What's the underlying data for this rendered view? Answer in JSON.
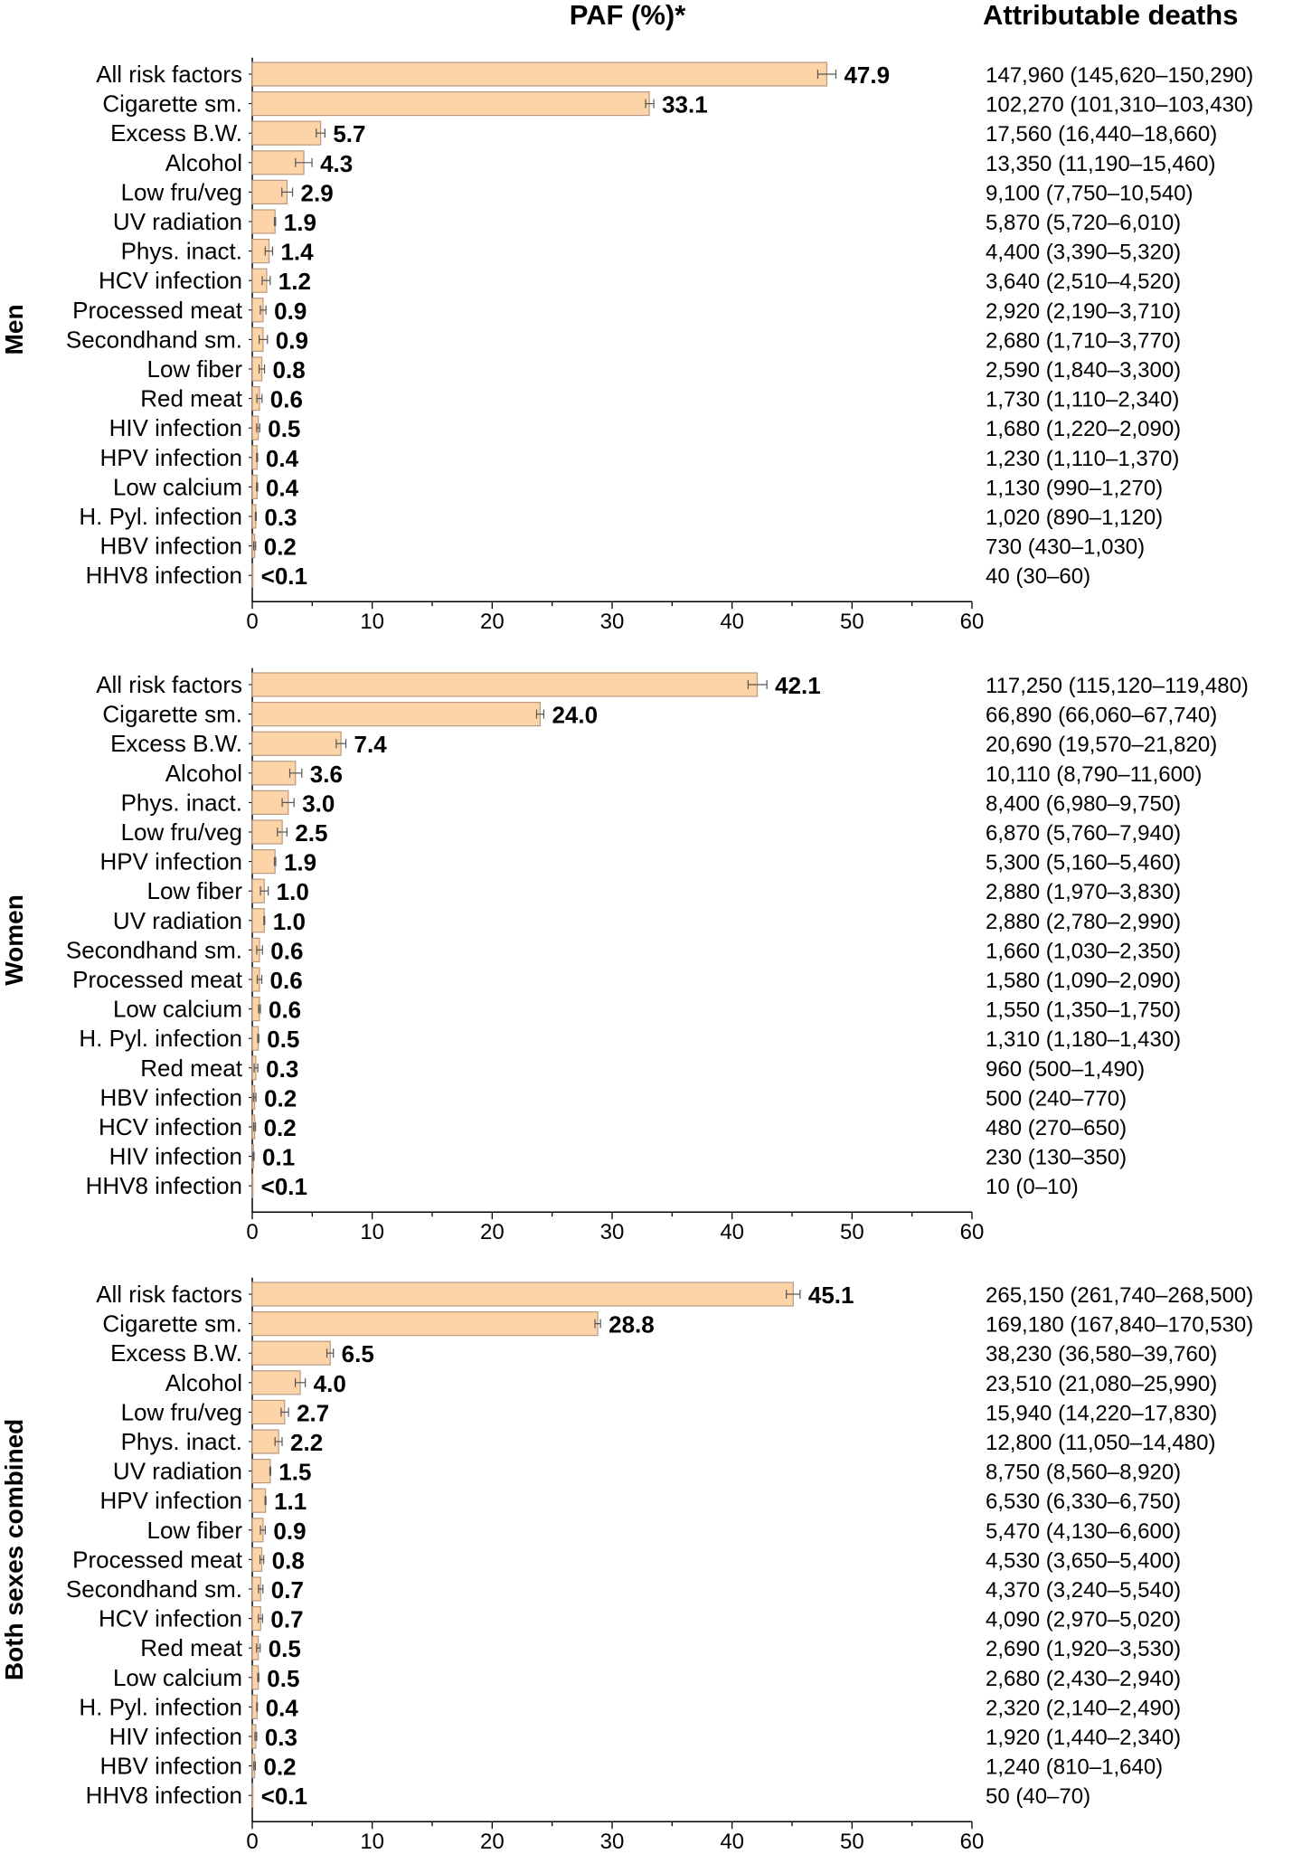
{
  "chart_data": {
    "type": "bar",
    "orientation": "horizontal",
    "title": "PAF (%)*",
    "right_column_title": "Attributable deaths",
    "xlim": [
      0,
      60
    ],
    "xticks": [
      0,
      10,
      20,
      30,
      40,
      50,
      60
    ],
    "grid": false,
    "error_bars": true,
    "bar_color": "#fdd3a8",
    "bar_edge_color": "#b89a80",
    "panels": [
      {
        "name": "Men",
        "rows": [
          {
            "label": "All risk factors",
            "paf": 47.9,
            "paf_label": "47.9",
            "deaths": "147,960 (145,620–150,290)"
          },
          {
            "label": "Cigarette sm.",
            "paf": 33.1,
            "paf_label": "33.1",
            "deaths": "102,270 (101,310–103,430)"
          },
          {
            "label": "Excess B.W.",
            "paf": 5.7,
            "paf_label": "5.7",
            "deaths": "17,560 (16,440–18,660)"
          },
          {
            "label": "Alcohol",
            "paf": 4.3,
            "paf_label": "4.3",
            "deaths": "13,350 (11,190–15,460)"
          },
          {
            "label": "Low fru/veg",
            "paf": 2.9,
            "paf_label": "2.9",
            "deaths": "9,100 (7,750–10,540)"
          },
          {
            "label": "UV radiation",
            "paf": 1.9,
            "paf_label": "1.9",
            "deaths": "5,870 (5,720–6,010)"
          },
          {
            "label": "Phys. inact.",
            "paf": 1.4,
            "paf_label": "1.4",
            "deaths": "4,400 (3,390–5,320)"
          },
          {
            "label": "HCV infection",
            "paf": 1.2,
            "paf_label": "1.2",
            "deaths": "3,640 (2,510–4,520)"
          },
          {
            "label": "Processed meat",
            "paf": 0.9,
            "paf_label": "0.9",
            "deaths": "2,920 (2,190–3,710)"
          },
          {
            "label": "Secondhand sm.",
            "paf": 0.9,
            "paf_label": "0.9",
            "deaths": "2,680 (1,710–3,770)"
          },
          {
            "label": "Low fiber",
            "paf": 0.8,
            "paf_label": "0.8",
            "deaths": "2,590 (1,840–3,300)"
          },
          {
            "label": "Red meat",
            "paf": 0.6,
            "paf_label": "0.6",
            "deaths": "1,730 (1,110–2,340)"
          },
          {
            "label": "HIV infection",
            "paf": 0.5,
            "paf_label": "0.5",
            "deaths": "1,680 (1,220–2,090)"
          },
          {
            "label": "HPV infection",
            "paf": 0.4,
            "paf_label": "0.4",
            "deaths": "1,230 (1,110–1,370)"
          },
          {
            "label": "Low calcium",
            "paf": 0.4,
            "paf_label": "0.4",
            "deaths": "1,130 (990–1,270)"
          },
          {
            "label": "H. Pyl. infection",
            "paf": 0.3,
            "paf_label": "0.3",
            "deaths": "1,020 (890–1,120)"
          },
          {
            "label": "HBV infection",
            "paf": 0.2,
            "paf_label": "0.2",
            "deaths": "730 (430–1,030)"
          },
          {
            "label": "HHV8 infection",
            "paf": 0.05,
            "paf_label": "<0.1",
            "deaths": "40 (30–60)"
          }
        ]
      },
      {
        "name": "Women",
        "rows": [
          {
            "label": "All risk factors",
            "paf": 42.1,
            "paf_label": "42.1",
            "deaths": "117,250 (115,120–119,480)"
          },
          {
            "label": "Cigarette sm.",
            "paf": 24.0,
            "paf_label": "24.0",
            "deaths": "66,890 (66,060–67,740)"
          },
          {
            "label": "Excess B.W.",
            "paf": 7.4,
            "paf_label": "7.4",
            "deaths": "20,690 (19,570–21,820)"
          },
          {
            "label": "Alcohol",
            "paf": 3.6,
            "paf_label": "3.6",
            "deaths": "10,110 (8,790–11,600)"
          },
          {
            "label": "Phys. inact.",
            "paf": 3.0,
            "paf_label": "3.0",
            "deaths": "8,400 (6,980–9,750)"
          },
          {
            "label": "Low fru/veg",
            "paf": 2.5,
            "paf_label": "2.5",
            "deaths": "6,870 (5,760–7,940)"
          },
          {
            "label": "HPV infection",
            "paf": 1.9,
            "paf_label": "1.9",
            "deaths": "5,300 (5,160–5,460)"
          },
          {
            "label": "Low fiber",
            "paf": 1.0,
            "paf_label": "1.0",
            "deaths": "2,880 (1,970–3,830)"
          },
          {
            "label": "UV radiation",
            "paf": 1.0,
            "paf_label": "1.0",
            "deaths": "2,880 (2,780–2,990)"
          },
          {
            "label": "Secondhand sm.",
            "paf": 0.6,
            "paf_label": "0.6",
            "deaths": "1,660 (1,030–2,350)"
          },
          {
            "label": "Processed meat",
            "paf": 0.6,
            "paf_label": "0.6",
            "deaths": "1,580 (1,090–2,090)"
          },
          {
            "label": "Low calcium",
            "paf": 0.6,
            "paf_label": "0.6",
            "deaths": "1,550 (1,350–1,750)"
          },
          {
            "label": "H. Pyl. infection",
            "paf": 0.5,
            "paf_label": "0.5",
            "deaths": "1,310 (1,180–1,430)"
          },
          {
            "label": "Red meat",
            "paf": 0.3,
            "paf_label": "0.3",
            "deaths": "960 (500–1,490)"
          },
          {
            "label": "HBV infection",
            "paf": 0.2,
            "paf_label": "0.2",
            "deaths": "500 (240–770)"
          },
          {
            "label": "HCV infection",
            "paf": 0.2,
            "paf_label": "0.2",
            "deaths": "480 (270–650)"
          },
          {
            "label": "HIV infection",
            "paf": 0.1,
            "paf_label": "0.1",
            "deaths": "230 (130–350)"
          },
          {
            "label": "HHV8 infection",
            "paf": 0.05,
            "paf_label": "<0.1",
            "deaths": "10 (0–10)"
          }
        ]
      },
      {
        "name": "Both sexes combined",
        "rows": [
          {
            "label": "All risk factors",
            "paf": 45.1,
            "paf_label": "45.1",
            "deaths": "265,150 (261,740–268,500)"
          },
          {
            "label": "Cigarette sm.",
            "paf": 28.8,
            "paf_label": "28.8",
            "deaths": "169,180 (167,840–170,530)"
          },
          {
            "label": "Excess B.W.",
            "paf": 6.5,
            "paf_label": "6.5",
            "deaths": "38,230 (36,580–39,760)"
          },
          {
            "label": "Alcohol",
            "paf": 4.0,
            "paf_label": "4.0",
            "deaths": "23,510 (21,080–25,990)"
          },
          {
            "label": "Low fru/veg",
            "paf": 2.7,
            "paf_label": "2.7",
            "deaths": "15,940 (14,220–17,830)"
          },
          {
            "label": "Phys. inact.",
            "paf": 2.2,
            "paf_label": "2.2",
            "deaths": "12,800 (11,050–14,480)"
          },
          {
            "label": "UV radiation",
            "paf": 1.5,
            "paf_label": "1.5",
            "deaths": "8,750 (8,560–8,920)"
          },
          {
            "label": "HPV infection",
            "paf": 1.1,
            "paf_label": "1.1",
            "deaths": "6,530 (6,330–6,750)"
          },
          {
            "label": "Low fiber",
            "paf": 0.9,
            "paf_label": "0.9",
            "deaths": "5,470 (4,130–6,600)"
          },
          {
            "label": "Processed meat",
            "paf": 0.8,
            "paf_label": "0.8",
            "deaths": "4,530 (3,650–5,400)"
          },
          {
            "label": "Secondhand sm.",
            "paf": 0.7,
            "paf_label": "0.7",
            "deaths": "4,370 (3,240–5,540)"
          },
          {
            "label": "HCV infection",
            "paf": 0.7,
            "paf_label": "0.7",
            "deaths": "4,090 (2,970–5,020)"
          },
          {
            "label": "Red meat",
            "paf": 0.5,
            "paf_label": "0.5",
            "deaths": "2,690 (1,920–3,530)"
          },
          {
            "label": "Low calcium",
            "paf": 0.5,
            "paf_label": "0.5",
            "deaths": "2,680 (2,430–2,940)"
          },
          {
            "label": "H. Pyl. infection",
            "paf": 0.4,
            "paf_label": "0.4",
            "deaths": "2,320 (2,140–2,490)"
          },
          {
            "label": "HIV infection",
            "paf": 0.3,
            "paf_label": "0.3",
            "deaths": "1,920 (1,440–2,340)"
          },
          {
            "label": "HBV infection",
            "paf": 0.2,
            "paf_label": "0.2",
            "deaths": "1,240 (810–1,640)"
          },
          {
            "label": "HHV8 infection",
            "paf": 0.05,
            "paf_label": "<0.1",
            "deaths": "50 (40–70)"
          }
        ]
      }
    ]
  }
}
